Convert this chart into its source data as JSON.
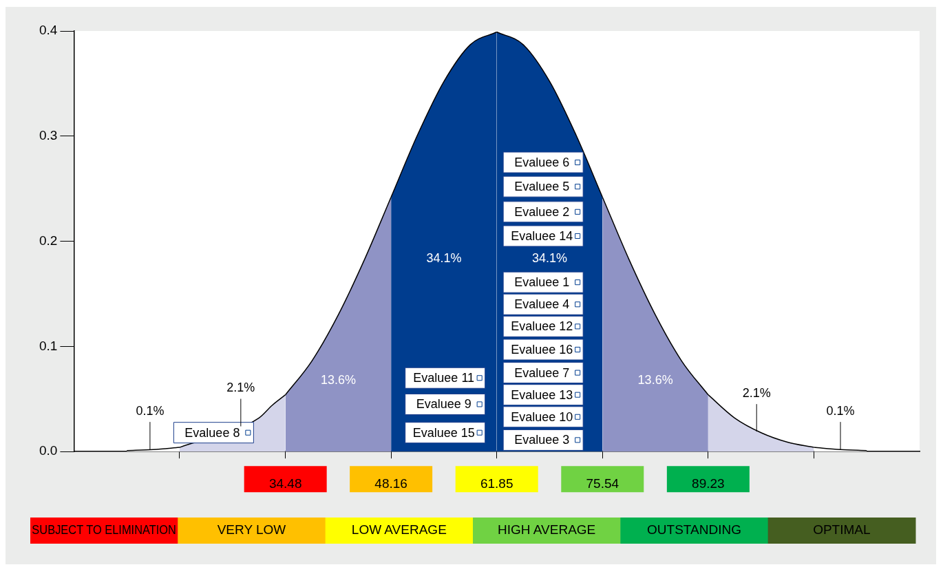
{
  "chart_data": {
    "type": "area",
    "marker": "none",
    "xlim": [
      7.09,
      116.61
    ],
    "xticks": [
      {
        "value": 20.78,
        "label": null
      },
      34.48,
      48.16,
      61.85,
      75.54,
      89.23,
      {
        "value": 102.92,
        "label": null
      }
    ],
    "ylim": [
      0,
      0.4
    ],
    "yticks": [
      {
        "value": 0,
        "label": "0.0"
      },
      0.1,
      0.2,
      0.3,
      0.4
    ],
    "series": [
      {
        "color": "#ffffff",
        "x": [
          13.94,
          17.36,
          20.78
        ],
        "values": [
          0.001,
          0.002,
          0.004
        ]
      },
      {
        "color": "#d4d5ea",
        "x": [
          20.78,
          31.05,
          32.76,
          34.48
        ],
        "values": [
          0.004,
          0.032,
          0.044,
          0.054
        ]
      },
      {
        "color": "#8f93c5",
        "x": [
          34.48,
          37.89,
          41.32,
          44.74,
          48.16
        ],
        "values": [
          0.054,
          0.086,
          0.13,
          0.183,
          0.242
        ]
      },
      {
        "color": "#003d8f",
        "x": [
          48.16,
          51.58,
          55.01,
          58.43,
          61.85
        ],
        "values": [
          0.242,
          0.301,
          0.352,
          0.387,
          0.399
        ]
      },
      {
        "color": "#003d8f",
        "x": [
          61.85,
          65.27,
          68.7,
          72.12,
          75.54
        ],
        "values": [
          0.399,
          0.387,
          0.352,
          0.301,
          0.242
        ]
      },
      {
        "color": "#8f93c5",
        "x": [
          75.54,
          78.96,
          82.39,
          85.81,
          89.23
        ],
        "values": [
          0.242,
          0.183,
          0.13,
          0.086,
          0.054
        ]
      },
      {
        "color": "#d4d5ea",
        "x": [
          89.23,
          92.65,
          96.08,
          99.5,
          102.92
        ],
        "values": [
          0.054,
          0.032,
          0.018,
          0.009,
          0.004
        ]
      },
      {
        "color": "#ffffff",
        "x": [
          102.92,
          106.34,
          109.77
        ],
        "values": [
          0.004,
          0.002,
          0.001
        ]
      },
      {
        "type": "scatter",
        "marker": "square",
        "color": "#ffffff",
        "x": [
          72.32,
          72.32,
          72.32,
          72.32,
          72.32,
          72.32,
          72.32,
          72.32,
          72.32,
          72.32,
          72.32,
          72.32,
          59.62,
          59.62,
          59.62,
          29.64
        ],
        "values": [
          0.275,
          0.252,
          0.228,
          0.205,
          0.161,
          0.14,
          0.119,
          0.097,
          0.075,
          0.054,
          0.033,
          0.011,
          0.07,
          0.045,
          0.018,
          0.018
        ],
        "value_labels": [
          "Evaluee 6",
          "Evaluee 5",
          "Evaluee 2",
          "Evaluee 14",
          "Evaluee 1",
          "Evaluee 4",
          "Evaluee 12",
          "Evaluee 16",
          "Evaluee 7",
          "Evaluee 13",
          "Evaluee 10",
          "Evaluee 3",
          "Evaluee 11",
          "Evaluee 9",
          "Evaluee 15",
          "Evaluee 8"
        ]
      }
    ],
    "annotations": [
      {
        "text": "0.1%",
        "x": 16.94,
        "y": 0.002
      },
      {
        "text": "2.1%",
        "x": 28.7,
        "y": 0.024
      },
      {
        "text": "2.1%",
        "x": 95.5,
        "y": 0.019
      },
      {
        "text": "0.1%",
        "x": 106.36,
        "y": 0.002
      },
      "13.6%",
      "34.1%",
      "34.1%",
      "13.6%",
      "SUBJECT TO ELIMINATION",
      "VERY LOW",
      "LOW AVERAGE",
      "HIGH AVERAGE",
      "OUTSTANDING",
      "OPTIMAL"
    ]
  }
}
